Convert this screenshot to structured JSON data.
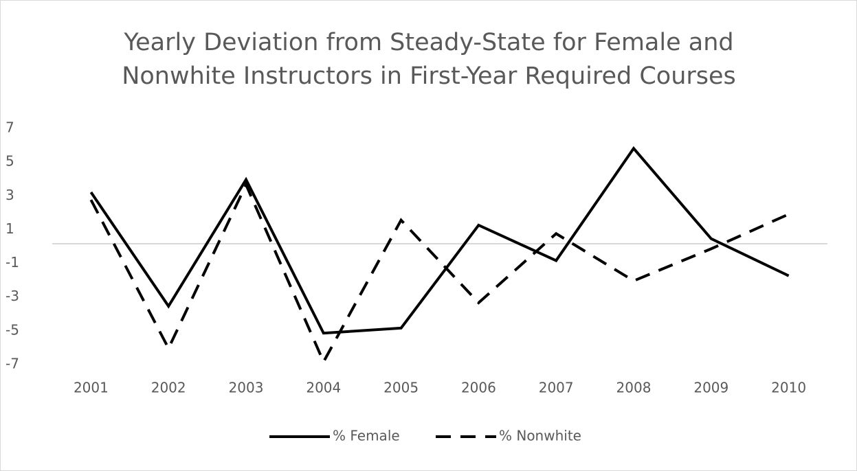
{
  "chart_data": {
    "type": "line",
    "title": "Yearly Deviation from Steady-State for Female and Nonwhite Instructors in First-Year Required Courses",
    "categories": [
      "2001",
      "2002",
      "2003",
      "2004",
      "2005",
      "2006",
      "2007",
      "2008",
      "2009",
      "2010"
    ],
    "series": [
      {
        "name": "% Female",
        "color": "#000000",
        "dash": false,
        "values": [
          3.05,
          -3.7,
          3.8,
          -5.3,
          -5.0,
          1.1,
          -1.0,
          5.65,
          0.3,
          -1.9
        ]
      },
      {
        "name": "% Nonwhite",
        "color": "#000000",
        "dash": true,
        "values": [
          2.6,
          -6.2,
          3.5,
          -7.0,
          1.4,
          -3.5,
          0.6,
          -2.2,
          -0.3,
          1.75
        ]
      }
    ],
    "ylim": [
      -7,
      7
    ],
    "yticks": [
      -7,
      -5,
      -3,
      -1,
      1,
      3,
      5,
      7
    ],
    "grid": false,
    "legend": "bottom"
  }
}
